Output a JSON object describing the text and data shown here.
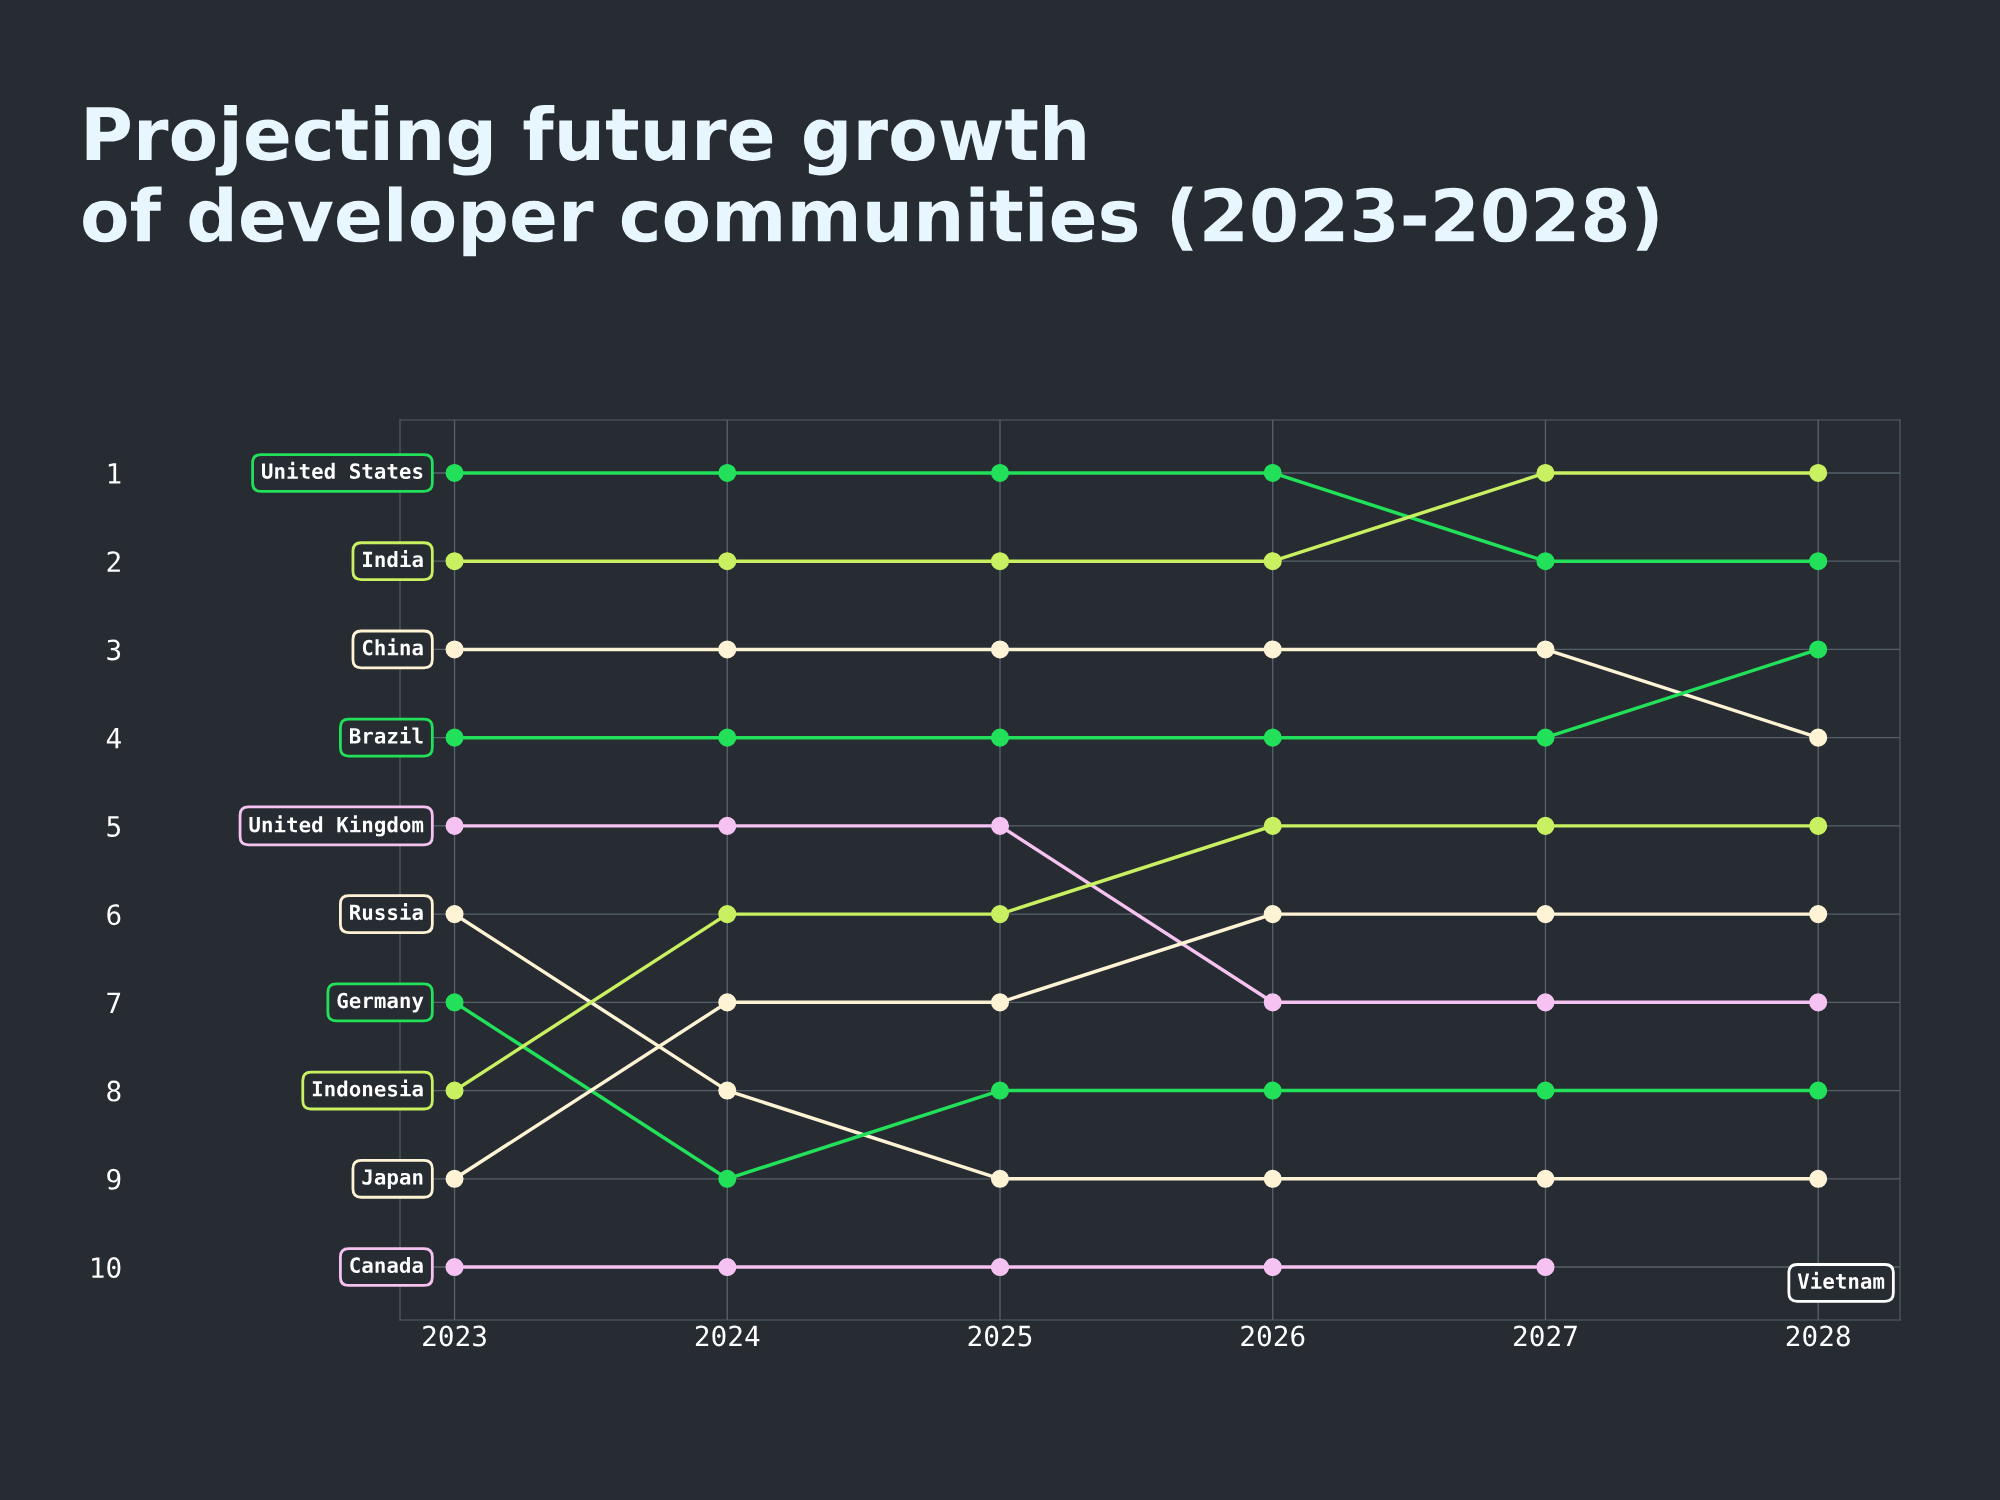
{
  "chart_data": {
    "type": "line",
    "title": "Projecting future growth\nof developer communities (2023-2028)",
    "categories": [
      "2023",
      "2024",
      "2025",
      "2026",
      "2027",
      "2028"
    ],
    "series": [
      {
        "name": "United States",
        "color": "#22e05a",
        "values": [
          1,
          1,
          1,
          1,
          2,
          2
        ]
      },
      {
        "name": "India",
        "color": "#c8f060",
        "values": [
          2,
          2,
          2,
          2,
          1,
          1
        ]
      },
      {
        "name": "China",
        "color": "#fff3d6",
        "values": [
          3,
          3,
          3,
          3,
          3,
          4
        ]
      },
      {
        "name": "Brazil",
        "color": "#22e05a",
        "values": [
          4,
          4,
          4,
          4,
          4,
          3
        ]
      },
      {
        "name": "United Kingdom",
        "color": "#f5c2f2",
        "values": [
          5,
          5,
          5,
          7,
          7,
          7
        ]
      },
      {
        "name": "Russia",
        "color": "#fff3d6",
        "values": [
          6,
          8,
          9,
          9,
          9,
          9
        ]
      },
      {
        "name": "Germany",
        "color": "#22e05a",
        "values": [
          7,
          9,
          8,
          8,
          8,
          8
        ]
      },
      {
        "name": "Indonesia",
        "color": "#c8f060",
        "values": [
          8,
          6,
          6,
          5,
          5,
          5
        ]
      },
      {
        "name": "Japan",
        "color": "#fff3d6",
        "values": [
          9,
          7,
          7,
          6,
          6,
          6
        ]
      },
      {
        "name": "Canada",
        "color": "#f5c2f2",
        "values": [
          10,
          10,
          10,
          10,
          10,
          null
        ]
      }
    ],
    "annotations": [
      "Vietnam"
    ],
    "ylim": [
      10.6,
      0.4
    ],
    "yticks": [
      1,
      2,
      3,
      4,
      5,
      6,
      7,
      8,
      9,
      10
    ],
    "grid": true,
    "legend": false,
    "marker": "circle",
    "line_style": "solid"
  }
}
